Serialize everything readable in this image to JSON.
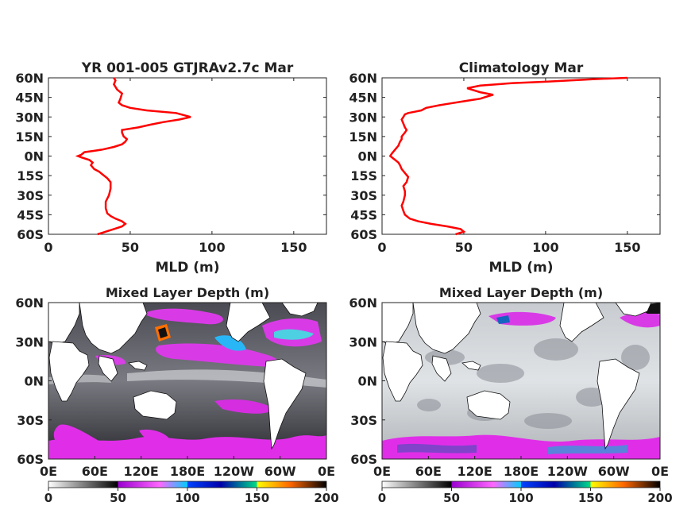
{
  "chart_data": [
    {
      "type": "line",
      "title": "YR 001-005 GTJRAv2.7c Mar",
      "xlabel": "MLD (m)",
      "ylabel": "",
      "xlim": [
        0,
        170
      ],
      "ylim": [
        -60,
        60
      ],
      "xticks": [
        "0",
        "50",
        "100",
        "150"
      ],
      "xtick_values": [
        0,
        50,
        100,
        150
      ],
      "yticks": [
        "60N",
        "45N",
        "30N",
        "15N",
        "0N",
        "15S",
        "30S",
        "45S",
        "60S"
      ],
      "ytick_values": [
        60,
        45,
        30,
        15,
        0,
        -15,
        -30,
        -45,
        -60
      ],
      "color": "#ff0000",
      "grid": false,
      "series": [
        {
          "x": [
            30,
            35,
            40,
            45,
            47,
            45,
            41,
            38,
            36,
            35,
            35,
            37,
            38,
            38,
            36,
            33,
            31,
            28,
            26,
            27,
            25,
            20,
            18,
            20,
            22,
            28,
            33,
            40,
            45,
            47,
            48,
            46,
            45,
            45,
            55,
            62,
            70,
            80,
            87,
            78,
            60,
            50,
            45,
            43,
            44,
            45,
            42,
            40,
            41,
            40
          ],
          "y": [
            -60,
            -58,
            -56,
            -54,
            -52,
            -50,
            -48,
            -46,
            -44,
            -40,
            -35,
            -30,
            -25,
            -20,
            -17,
            -14,
            -12,
            -10,
            -7,
            -5,
            -3,
            -1,
            0,
            1,
            3,
            4,
            5,
            7,
            9,
            11,
            13,
            15,
            18,
            20,
            22,
            24,
            26,
            28,
            30,
            33,
            35,
            37,
            39,
            41,
            44,
            48,
            51,
            55,
            58,
            60
          ]
        }
      ]
    },
    {
      "type": "line",
      "title": "Climatology Mar",
      "xlabel": "MLD (m)",
      "ylabel": "",
      "xlim": [
        0,
        170
      ],
      "ylim": [
        -60,
        60
      ],
      "xticks": [
        "0",
        "50",
        "100",
        "150"
      ],
      "xtick_values": [
        0,
        50,
        100,
        150
      ],
      "yticks": [
        "60N",
        "45N",
        "30N",
        "15N",
        "0N",
        "15S",
        "30S",
        "45S",
        "60S"
      ],
      "ytick_values": [
        60,
        45,
        30,
        15,
        0,
        -15,
        -30,
        -45,
        -60
      ],
      "color": "#ff0000",
      "grid": false,
      "series": [
        {
          "x": [
            45,
            50,
            48,
            40,
            30,
            22,
            17,
            14,
            13,
            12,
            13,
            14,
            14,
            13,
            15,
            16,
            14,
            12,
            11,
            10,
            8,
            6,
            5,
            6,
            8,
            10,
            11,
            12,
            12,
            14,
            15,
            14,
            13,
            12,
            13,
            14,
            16,
            20,
            24,
            27,
            35,
            40,
            50,
            55,
            60,
            65,
            68,
            60,
            52,
            60,
            80,
            100,
            130,
            150
          ],
          "y": [
            -60,
            -58,
            -56,
            -54,
            -52,
            -50,
            -48,
            -45,
            -42,
            -38,
            -35,
            -30,
            -27,
            -23,
            -20,
            -16,
            -13,
            -10,
            -7,
            -5,
            -3,
            -1,
            0,
            2,
            5,
            8,
            11,
            13,
            15,
            18,
            20,
            22,
            25,
            28,
            30,
            32,
            33,
            34,
            35,
            37,
            39,
            40,
            42,
            43,
            44,
            46,
            47,
            49,
            52,
            54,
            56,
            57,
            59,
            60
          ]
        }
      ]
    },
    {
      "type": "heatmap",
      "title": "Mixed Layer Depth (m)",
      "xticks": [
        "0E",
        "60E",
        "120E",
        "180E",
        "120W",
        "60W",
        "0E"
      ],
      "yticks": [
        "60N",
        "30N",
        "0N",
        "30S",
        "60S"
      ],
      "xlim": [
        0,
        360
      ],
      "ylim": [
        -60,
        60
      ],
      "colorbar": {
        "ticks": [
          "0",
          "50",
          "100",
          "150",
          "200"
        ],
        "range": [
          0,
          200
        ],
        "bands": [
          "#ffffff",
          "#000000",
          "#ff00ff",
          "#00ffff",
          "#0000ff",
          "#ffff00",
          "#ff0000",
          "#000000"
        ]
      }
    },
    {
      "type": "heatmap",
      "title": "Mixed Layer Depth (m)",
      "xticks": [
        "0E",
        "60E",
        "120E",
        "180E",
        "120W",
        "60W",
        "0E"
      ],
      "yticks": [
        "60N",
        "30N",
        "0N",
        "30S",
        "60S"
      ],
      "xlim": [
        0,
        360
      ],
      "ylim": [
        -60,
        60
      ],
      "colorbar": {
        "ticks": [
          "0",
          "50",
          "100",
          "150",
          "200"
        ],
        "range": [
          0,
          200
        ],
        "bands": [
          "#ffffff",
          "#000000",
          "#ff00ff",
          "#00ffff",
          "#0000ff",
          "#ffff00",
          "#ff0000",
          "#000000"
        ]
      }
    }
  ]
}
